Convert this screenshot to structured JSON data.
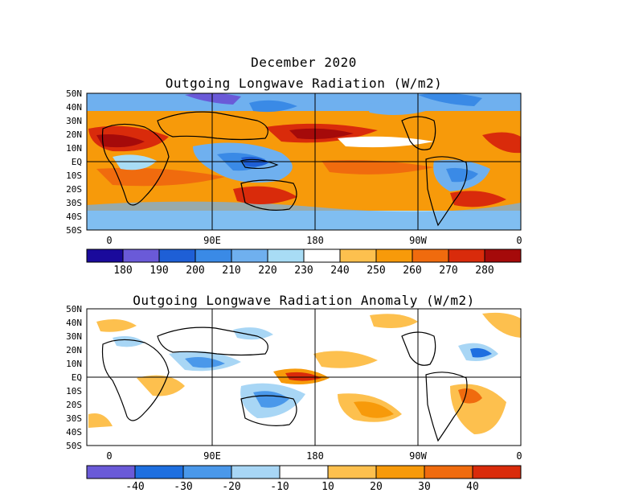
{
  "header": {
    "date_title": "December 2020"
  },
  "panels": [
    {
      "title": "Outgoing Longwave Radiation (W/m2)",
      "y_labels": [
        "50N",
        "40N",
        "30N",
        "20N",
        "10N",
        "EQ",
        "10S",
        "20S",
        "30S",
        "40S",
        "50S"
      ],
      "x_labels": [
        "0",
        "90E",
        "180",
        "90W",
        "0"
      ],
      "colorbar": {
        "labels": [
          "180",
          "190",
          "200",
          "210",
          "220",
          "230",
          "240",
          "250",
          "260",
          "270",
          "280"
        ],
        "colors": [
          "#1a0a9c",
          "#6a5ad8",
          "#1e5fd6",
          "#3a8ae6",
          "#6fb0ef",
          "#a8dcf5",
          "#ffffff",
          "#fdc04e",
          "#f79a0a",
          "#f06b0e",
          "#d92b0b",
          "#a50a0a"
        ]
      }
    },
    {
      "title": "Outgoing Longwave Radiation Anomaly (W/m2)",
      "y_labels": [
        "50N",
        "40N",
        "30N",
        "20N",
        "10N",
        "EQ",
        "10S",
        "20S",
        "30S",
        "40S",
        "50S"
      ],
      "x_labels": [
        "0",
        "90E",
        "180",
        "90W",
        "0"
      ],
      "colorbar": {
        "labels": [
          "-40",
          "-30",
          "-20",
          "-10",
          "10",
          "20",
          "30",
          "40"
        ],
        "colors": [
          "#6a5ad8",
          "#1e6fe0",
          "#4a98ea",
          "#a8d6f5",
          "#ffffff",
          "#fdc04e",
          "#f79a0a",
          "#f06b0e",
          "#d92b0b"
        ]
      }
    }
  ]
}
